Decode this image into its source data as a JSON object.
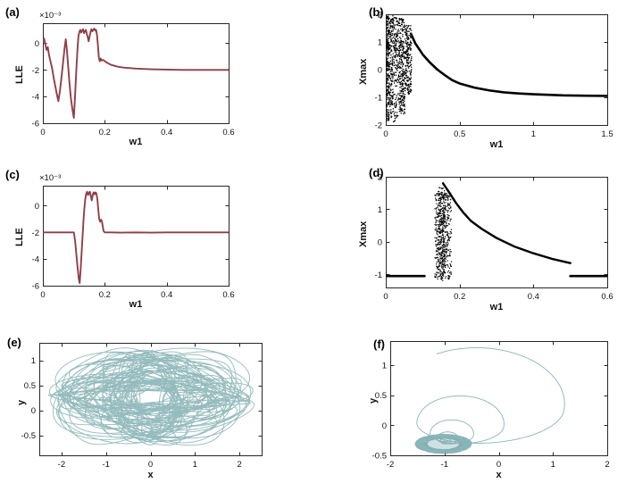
{
  "figure": {
    "background": "#ffffff",
    "maroon": "#8e3f48",
    "black": "#000000",
    "teal": "#76a8ab"
  },
  "chart_data": [
    {
      "id": "a",
      "label": "(a)",
      "type": "line",
      "xlabel": "w1",
      "ylabel": "LLE",
      "y_scale_note": "×10⁻³",
      "xlim": [
        0,
        0.6
      ],
      "ylim": [
        -6,
        1.5
      ],
      "xticks": [
        0,
        0.2,
        0.4,
        0.6
      ],
      "yticks": [
        -6,
        -4,
        -2,
        0
      ],
      "color": "#8e3f48",
      "line_width": 1.9,
      "points": [
        [
          0,
          0.1
        ],
        [
          0.004,
          0.35
        ],
        [
          0.008,
          -0.1
        ],
        [
          0.012,
          -0.5
        ],
        [
          0.016,
          -0.3
        ],
        [
          0.02,
          -0.9
        ],
        [
          0.025,
          -1.4
        ],
        [
          0.03,
          -1.9
        ],
        [
          0.035,
          -2.6
        ],
        [
          0.04,
          -3.2
        ],
        [
          0.045,
          -3.8
        ],
        [
          0.05,
          -4.35
        ],
        [
          0.055,
          -3.6
        ],
        [
          0.06,
          -2.6
        ],
        [
          0.065,
          -1.5
        ],
        [
          0.07,
          -0.4
        ],
        [
          0.074,
          0.3
        ],
        [
          0.078,
          -0.6
        ],
        [
          0.082,
          -1.8
        ],
        [
          0.086,
          -3.0
        ],
        [
          0.09,
          -4.0
        ],
        [
          0.095,
          -4.9
        ],
        [
          0.1,
          -5.6
        ],
        [
          0.103,
          -4.4
        ],
        [
          0.106,
          -3.0
        ],
        [
          0.109,
          -1.6
        ],
        [
          0.112,
          -0.4
        ],
        [
          0.115,
          0.55
        ],
        [
          0.118,
          0.85
        ],
        [
          0.121,
          1.0
        ],
        [
          0.124,
          0.8
        ],
        [
          0.127,
          0.95
        ],
        [
          0.13,
          1.05
        ],
        [
          0.133,
          0.75
        ],
        [
          0.136,
          0.9
        ],
        [
          0.139,
          1.0
        ],
        [
          0.142,
          0.7
        ],
        [
          0.145,
          0.45
        ],
        [
          0.148,
          0.15
        ],
        [
          0.151,
          0.5
        ],
        [
          0.154,
          0.85
        ],
        [
          0.157,
          1.05
        ],
        [
          0.16,
          0.9
        ],
        [
          0.163,
          1.0
        ],
        [
          0.166,
          1.1
        ],
        [
          0.169,
          0.95
        ],
        [
          0.172,
          1.0
        ],
        [
          0.175,
          0.6
        ],
        [
          0.178,
          -0.2
        ],
        [
          0.181,
          -1.1
        ],
        [
          0.184,
          -1.35
        ],
        [
          0.187,
          -1.15
        ],
        [
          0.19,
          -1.3
        ],
        [
          0.195,
          -1.25
        ],
        [
          0.2,
          -1.35
        ],
        [
          0.21,
          -1.5
        ],
        [
          0.22,
          -1.62
        ],
        [
          0.24,
          -1.75
        ],
        [
          0.26,
          -1.83
        ],
        [
          0.3,
          -1.9
        ],
        [
          0.35,
          -1.95
        ],
        [
          0.4,
          -1.98
        ],
        [
          0.45,
          -2.0
        ],
        [
          0.5,
          -2.0
        ],
        [
          0.55,
          -2.0
        ],
        [
          0.6,
          -2.0
        ]
      ]
    },
    {
      "id": "b",
      "label": "(b)",
      "type": "scatter",
      "xlabel": "w1",
      "ylabel": "Xmax",
      "xlim": [
        0,
        1.5
      ],
      "ylim": [
        -2,
        2
      ],
      "xticks": [
        0,
        0.5,
        1,
        1.5
      ],
      "yticks": [
        -2,
        -1,
        0,
        1,
        2
      ],
      "color": "#000000",
      "dot_size": 1.3,
      "curve_width": 2.6,
      "curve": [
        [
          0.17,
          1.3
        ],
        [
          0.2,
          0.95
        ],
        [
          0.25,
          0.55
        ],
        [
          0.3,
          0.25
        ],
        [
          0.35,
          0.0
        ],
        [
          0.4,
          -0.2
        ],
        [
          0.45,
          -0.38
        ],
        [
          0.5,
          -0.5
        ],
        [
          0.6,
          -0.65
        ],
        [
          0.7,
          -0.75
        ],
        [
          0.8,
          -0.82
        ],
        [
          0.9,
          -0.86
        ],
        [
          1.0,
          -0.89
        ],
        [
          1.1,
          -0.91
        ],
        [
          1.2,
          -0.93
        ],
        [
          1.35,
          -0.94
        ],
        [
          1.5,
          -0.95
        ]
      ],
      "scatter_bands": [
        {
          "x": [
            0.004,
            0.022
          ],
          "y": [
            -1.85,
            1.95
          ],
          "count": 220
        },
        {
          "x": [
            0.022,
            0.05
          ],
          "y": [
            -1.3,
            1.95
          ],
          "count": 160
        },
        {
          "x": [
            0.05,
            0.09
          ],
          "y": [
            -0.6,
            1.9
          ],
          "count": 140
        },
        {
          "x": [
            0.02,
            0.09
          ],
          "y": [
            -1.9,
            -0.8
          ],
          "count": 60
        },
        {
          "x": [
            0.09,
            0.13
          ],
          "y": [
            -1.6,
            1.85
          ],
          "count": 260
        },
        {
          "x": [
            0.13,
            0.175
          ],
          "y": [
            -0.9,
            1.6
          ],
          "count": 220
        }
      ]
    },
    {
      "id": "c",
      "label": "(c)",
      "type": "line",
      "xlabel": "w1",
      "ylabel": "LLE",
      "y_scale_note": "×10⁻³",
      "xlim": [
        0,
        0.6
      ],
      "ylim": [
        -6,
        1.5
      ],
      "xticks": [
        0,
        0.2,
        0.4,
        0.6
      ],
      "yticks": [
        -6,
        -4,
        -2,
        0
      ],
      "color": "#8e3f48",
      "line_width": 1.9,
      "points": [
        [
          0,
          -2
        ],
        [
          0.02,
          -2
        ],
        [
          0.04,
          -2
        ],
        [
          0.06,
          -2
        ],
        [
          0.08,
          -2
        ],
        [
          0.1,
          -2
        ],
        [
          0.104,
          -2.6
        ],
        [
          0.108,
          -3.6
        ],
        [
          0.112,
          -4.6
        ],
        [
          0.116,
          -5.5
        ],
        [
          0.119,
          -5.8
        ],
        [
          0.122,
          -4.8
        ],
        [
          0.125,
          -3.6
        ],
        [
          0.128,
          -2.4
        ],
        [
          0.131,
          -1.2
        ],
        [
          0.134,
          -0.2
        ],
        [
          0.137,
          0.5
        ],
        [
          0.14,
          0.9
        ],
        [
          0.143,
          1.05
        ],
        [
          0.146,
          0.8
        ],
        [
          0.149,
          0.95
        ],
        [
          0.152,
          1.05
        ],
        [
          0.155,
          0.7
        ],
        [
          0.158,
          0.4
        ],
        [
          0.161,
          0.8
        ],
        [
          0.164,
          1.0
        ],
        [
          0.167,
          0.85
        ],
        [
          0.17,
          1.0
        ],
        [
          0.173,
          0.9
        ],
        [
          0.176,
          0.5
        ],
        [
          0.179,
          -0.3
        ],
        [
          0.182,
          -1.0
        ],
        [
          0.185,
          -1.2
        ],
        [
          0.188,
          -1.05
        ],
        [
          0.191,
          -1.2
        ],
        [
          0.196,
          -1.9
        ],
        [
          0.2,
          -2.0
        ],
        [
          0.22,
          -2.0
        ],
        [
          0.25,
          -2.02
        ],
        [
          0.3,
          -2.0
        ],
        [
          0.35,
          -2.02
        ],
        [
          0.4,
          -2.0
        ],
        [
          0.45,
          -2.0
        ],
        [
          0.5,
          -2.0
        ],
        [
          0.55,
          -2.0
        ],
        [
          0.6,
          -2.0
        ]
      ]
    },
    {
      "id": "d",
      "label": "(d)",
      "type": "scatter",
      "xlabel": "w1",
      "ylabel": "Xmax",
      "xlim": [
        0,
        0.6
      ],
      "ylim": [
        -1.4,
        2
      ],
      "xticks": [
        0,
        0.2,
        0.4,
        0.6
      ],
      "yticks": [
        -1,
        0,
        1,
        2
      ],
      "color": "#000000",
      "dot_size": 1.2,
      "curve_width": 2.4,
      "segments": [
        {
          "points": [
            [
              0,
              -1.05
            ],
            [
              0.105,
              -1.05
            ]
          ],
          "width": 2.6
        },
        {
          "points": [
            [
              0.5,
              -1.05
            ],
            [
              0.6,
              -1.05
            ]
          ],
          "width": 2.6
        }
      ],
      "curve": [
        [
          0.155,
          1.8
        ],
        [
          0.17,
          1.55
        ],
        [
          0.19,
          1.2
        ],
        [
          0.21,
          0.9
        ],
        [
          0.23,
          0.65
        ],
        [
          0.26,
          0.4
        ],
        [
          0.3,
          0.12
        ],
        [
          0.35,
          -0.15
        ],
        [
          0.4,
          -0.35
        ],
        [
          0.45,
          -0.52
        ],
        [
          0.5,
          -0.65
        ]
      ],
      "scatter_bands": [
        {
          "x": [
            0.133,
            0.178
          ],
          "y": [
            -1.15,
            1.5
          ],
          "count": 420
        },
        {
          "x": [
            0.142,
            0.162
          ],
          "y": [
            -1.2,
            1.7
          ],
          "count": 260
        }
      ]
    },
    {
      "id": "e",
      "label": "(e)",
      "type": "phase",
      "xlabel": "x",
      "ylabel": "y",
      "xlim": [
        -2.5,
        2.5
      ],
      "ylim": [
        -0.9,
        1.35
      ],
      "xticks": [
        -2,
        -1,
        0,
        1,
        2
      ],
      "yticks": [
        -0.5,
        0,
        0.5,
        1
      ],
      "color": "#76a8ab",
      "generator": {
        "kind": "tangle",
        "n": 9000,
        "dt": 0.05,
        "ax0": 1.3,
        "ax1": 0.85,
        "fx": 0.173,
        "px": 0.5,
        "ay0": 0.55,
        "ay1": 0.35,
        "fy": 0.211,
        "py": 2.0,
        "fm": 0.0713,
        "cy": 0.27
      }
    },
    {
      "id": "f",
      "label": "(f)",
      "type": "phase",
      "xlabel": "x",
      "ylabel": "y",
      "xlim": [
        -2,
        2
      ],
      "ylim": [
        -0.5,
        1.4
      ],
      "xticks": [
        -2,
        -1,
        0,
        1,
        2
      ],
      "yticks": [
        -0.5,
        0,
        0.5,
        1
      ],
      "color": "#76a8ab",
      "generator": {
        "kind": "spiral_blob",
        "theta0": 2.2,
        "r0": 1.85,
        "decay": 0.5,
        "turns": 5,
        "cx0": -0.05,
        "cy0": 0.35,
        "cx1": -1.02,
        "cy1": -0.31,
        "yscale": 0.56,
        "lower": 0.62,
        "brx": 0.42,
        "bry": 0.13,
        "blobSteps": 2600
      }
    }
  ]
}
